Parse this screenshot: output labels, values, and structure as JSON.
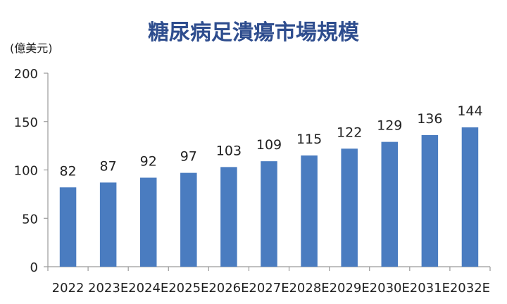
{
  "chart_data": {
    "type": "bar",
    "title": "糖尿病足潰瘍市場規模",
    "ylabel": "(億美元)",
    "xlabel": "",
    "categories": [
      "2022",
      "2023E",
      "2024E",
      "2025E",
      "2026E",
      "2027E",
      "2028E",
      "2029E",
      "2030E",
      "2031E",
      "2032E"
    ],
    "values": [
      82,
      87,
      92,
      97,
      103,
      109,
      115,
      122,
      129,
      136,
      144
    ],
    "ylim": [
      0,
      200
    ],
    "yticks": [
      0,
      50,
      100,
      150,
      200
    ],
    "grid": false,
    "legend": "none",
    "bar_color": "#4a7cc0"
  }
}
